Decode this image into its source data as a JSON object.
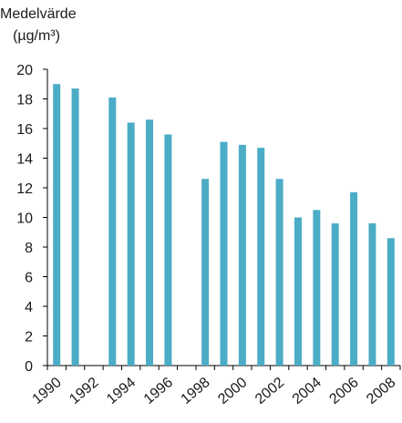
{
  "chart_data": {
    "type": "bar",
    "ylabel_line1": "Medelvärde",
    "ylabel_line2": "(µg/m³)",
    "categories": [
      "1990",
      "1991",
      "1992",
      "1993",
      "1994",
      "1995",
      "1996",
      "1997",
      "1998",
      "1999",
      "2000",
      "2001",
      "2002",
      "2003",
      "2004",
      "2005",
      "2006",
      "2007",
      "2008"
    ],
    "values": [
      19.0,
      18.7,
      null,
      18.1,
      16.4,
      16.6,
      15.6,
      null,
      12.6,
      15.1,
      14.9,
      14.7,
      12.6,
      10.0,
      10.5,
      9.6,
      11.7,
      9.6,
      8.6
    ],
    "x_tick_labels": [
      "1990",
      "1992",
      "1994",
      "1996",
      "1998",
      "2000",
      "2002",
      "2004",
      "2006",
      "2008"
    ],
    "y_tick_labels": [
      "0",
      "2",
      "4",
      "6",
      "8",
      "10",
      "12",
      "14",
      "16",
      "18",
      "20"
    ],
    "ylim": [
      0,
      20
    ],
    "grid": false,
    "bar_color": "#4bacc6"
  }
}
